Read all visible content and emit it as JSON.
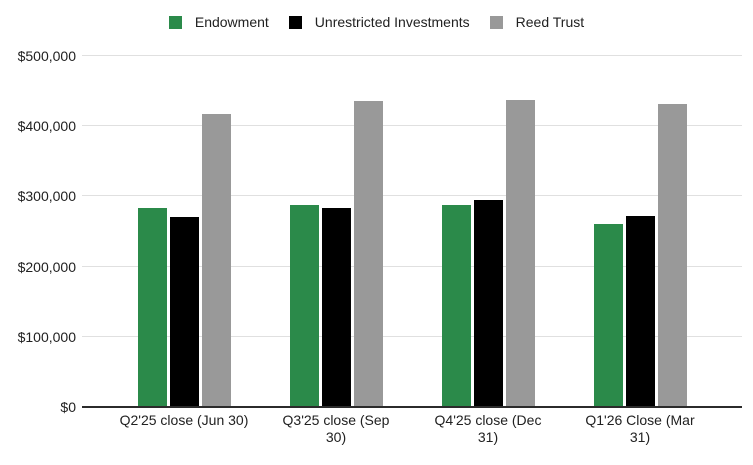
{
  "colors": {
    "background": "#ffffff",
    "grid": "#e0e0e0",
    "axis": "#2b2b2b",
    "text": "#212121"
  },
  "legend": {
    "position": "top",
    "items": [
      {
        "label": "Endowment",
        "color": "#2b8a4a"
      },
      {
        "label": "Unrestricted Investments",
        "color": "#000000"
      },
      {
        "label": "Reed Trust",
        "color": "#999999"
      }
    ]
  },
  "chart_data": {
    "type": "bar",
    "title": "",
    "xlabel": "",
    "ylabel": "",
    "grid": true,
    "legend_position": "top",
    "ylim": [
      0,
      500000
    ],
    "y_ticks": [
      {
        "value": 0,
        "label": "$0"
      },
      {
        "value": 100000,
        "label": "$100,000"
      },
      {
        "value": 200000,
        "label": "$200,000"
      },
      {
        "value": 300000,
        "label": "$300,000"
      },
      {
        "value": 400000,
        "label": "$400,000"
      },
      {
        "value": 500000,
        "label": "$500,000"
      }
    ],
    "categories": [
      "Q2'25 close (Jun 30)",
      "Q3'25 close (Sep 30)",
      "Q4'25 close (Dec 31)",
      "Q1'26 Close (Mar 31)"
    ],
    "category_label_lines": [
      [
        "Q2'25 close (Jun 30)"
      ],
      [
        "Q3'25 close (Sep",
        "30)"
      ],
      [
        "Q4'25 close (Dec",
        "31)"
      ],
      [
        "Q1'26 Close (Mar",
        "31)"
      ]
    ],
    "series": [
      {
        "name": "Endowment",
        "color": "#2b8a4a",
        "values": [
          283000,
          288000,
          288000,
          260000
        ]
      },
      {
        "name": "Unrestricted Investments",
        "color": "#000000",
        "values": [
          271000,
          284000,
          295000,
          272000
        ]
      },
      {
        "name": "Reed Trust",
        "color": "#999999",
        "values": [
          418000,
          436000,
          438000,
          431000
        ]
      }
    ]
  }
}
